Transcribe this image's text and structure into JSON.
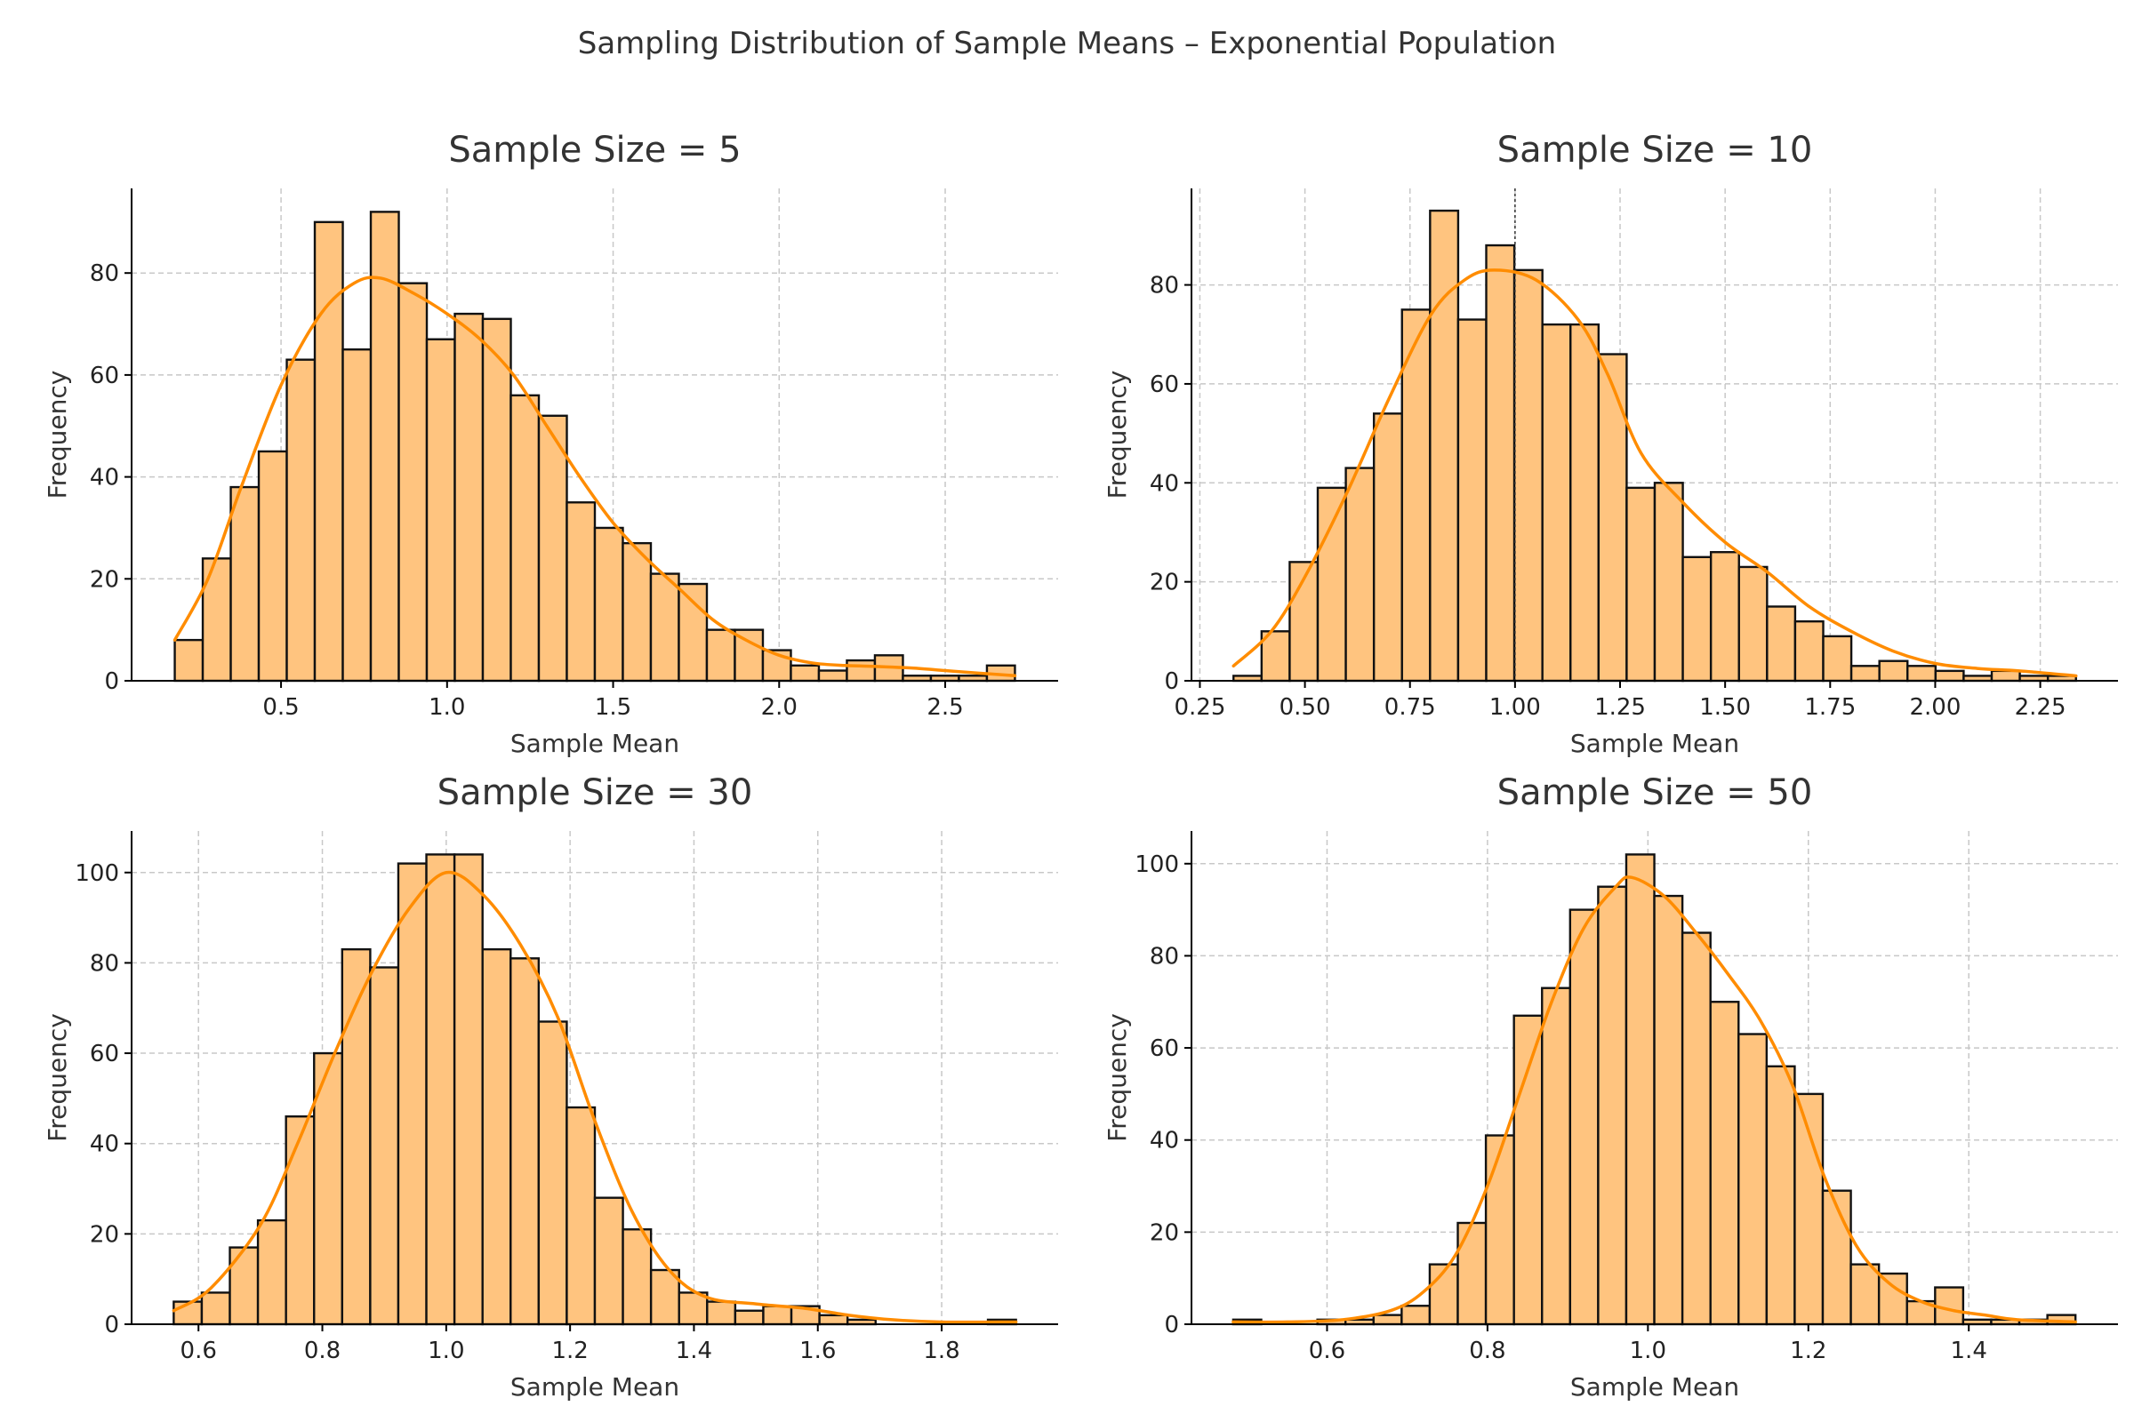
{
  "figure": {
    "suptitle": "Sampling Distribution of Sample Means – Exponential Population",
    "bar_color": "#ffc47f",
    "line_color": "#ff8c00"
  },
  "chart_data": [
    {
      "type": "bar",
      "title": "Sample Size = 5",
      "xlabel": "Sample Mean",
      "ylabel": "Frequency",
      "bin_range": [
        0.18,
        2.71
      ],
      "values": [
        8,
        24,
        38,
        45,
        63,
        90,
        65,
        92,
        78,
        67,
        72,
        71,
        56,
        52,
        35,
        30,
        27,
        21,
        19,
        10,
        10,
        6,
        3,
        2,
        4,
        5,
        1,
        1,
        1,
        3
      ],
      "kde": [
        [
          0.18,
          8
        ],
        [
          0.28,
          20
        ],
        [
          0.38,
          38
        ],
        [
          0.5,
          58
        ],
        [
          0.62,
          72
        ],
        [
          0.72,
          78
        ],
        [
          0.8,
          79
        ],
        [
          0.9,
          76
        ],
        [
          1.0,
          72
        ],
        [
          1.1,
          67
        ],
        [
          1.2,
          60
        ],
        [
          1.3,
          50
        ],
        [
          1.4,
          40
        ],
        [
          1.5,
          31
        ],
        [
          1.6,
          24
        ],
        [
          1.7,
          18
        ],
        [
          1.8,
          12
        ],
        [
          1.9,
          8
        ],
        [
          2.0,
          5
        ],
        [
          2.1,
          3.5
        ],
        [
          2.2,
          3
        ],
        [
          2.3,
          2.8
        ],
        [
          2.4,
          2.5
        ],
        [
          2.5,
          2
        ],
        [
          2.6,
          1.5
        ],
        [
          2.71,
          1
        ]
      ],
      "xticks": [
        0.5,
        1.0,
        1.5,
        2.0,
        2.5
      ],
      "xtick_labels": [
        "0.5",
        "1.0",
        "1.5",
        "2.0",
        "2.5"
      ],
      "yticks": [
        0,
        20,
        40,
        60,
        80
      ],
      "ytick_labels": [
        "0",
        "20",
        "40",
        "60",
        "80"
      ],
      "xlim": [
        0.05,
        2.84
      ],
      "ylim": [
        0,
        96.6
      ],
      "grid": true
    },
    {
      "type": "bar",
      "title": "Sample Size = 10",
      "xlabel": "Sample Mean",
      "ylabel": "Frequency",
      "bin_range": [
        0.33,
        2.335
      ],
      "values": [
        1,
        10,
        24,
        39,
        43,
        54,
        75,
        95,
        73,
        88,
        83,
        72,
        72,
        66,
        39,
        40,
        25,
        26,
        23,
        15,
        12,
        9,
        3,
        4,
        3,
        2,
        1,
        2,
        1,
        1
      ],
      "kde": [
        [
          0.33,
          3
        ],
        [
          0.42,
          10
        ],
        [
          0.5,
          21
        ],
        [
          0.6,
          38
        ],
        [
          0.7,
          57
        ],
        [
          0.8,
          74
        ],
        [
          0.88,
          81
        ],
        [
          0.95,
          83
        ],
        [
          1.05,
          81
        ],
        [
          1.15,
          73
        ],
        [
          1.22,
          62
        ],
        [
          1.3,
          46
        ],
        [
          1.4,
          36
        ],
        [
          1.5,
          28
        ],
        [
          1.6,
          22
        ],
        [
          1.7,
          15
        ],
        [
          1.8,
          10
        ],
        [
          1.9,
          6
        ],
        [
          2.0,
          3.5
        ],
        [
          2.1,
          2.5
        ],
        [
          2.2,
          2
        ],
        [
          2.335,
          1
        ]
      ],
      "xticks": [
        0.25,
        0.5,
        0.75,
        1.0,
        1.25,
        1.5,
        1.75,
        2.0,
        2.25
      ],
      "xtick_labels": [
        "0.25",
        "0.50",
        "0.75",
        "1.00",
        "1.25",
        "1.50",
        "1.75",
        "2.00",
        "2.25"
      ],
      "yticks": [
        0,
        20,
        40,
        60,
        80
      ],
      "ytick_labels": [
        "0",
        "20",
        "40",
        "60",
        "80"
      ],
      "xlim": [
        0.23,
        2.435
      ],
      "ylim": [
        0,
        99.5
      ],
      "grid": true,
      "vline": 1.0
    },
    {
      "type": "bar",
      "title": "Sample Size = 30",
      "xlabel": "Sample Mean",
      "ylabel": "Frequency",
      "bin_range": [
        0.56,
        1.92
      ],
      "values": [
        5,
        7,
        17,
        23,
        46,
        60,
        83,
        79,
        102,
        104,
        104,
        83,
        81,
        67,
        48,
        28,
        21,
        12,
        7,
        5,
        3,
        4,
        4,
        2,
        1,
        0,
        0,
        0,
        0,
        1
      ],
      "kde": [
        [
          0.56,
          3
        ],
        [
          0.62,
          8
        ],
        [
          0.7,
          22
        ],
        [
          0.76,
          40
        ],
        [
          0.82,
          60
        ],
        [
          0.88,
          78
        ],
        [
          0.94,
          92
        ],
        [
          1.0,
          100
        ],
        [
          1.06,
          95
        ],
        [
          1.12,
          84
        ],
        [
          1.18,
          68
        ],
        [
          1.24,
          45
        ],
        [
          1.3,
          25
        ],
        [
          1.36,
          12
        ],
        [
          1.42,
          6
        ],
        [
          1.5,
          4.5
        ],
        [
          1.58,
          3.5
        ],
        [
          1.65,
          2
        ],
        [
          1.72,
          1
        ],
        [
          1.8,
          0.5
        ],
        [
          1.92,
          0.5
        ]
      ],
      "xticks": [
        0.6,
        0.8,
        1.0,
        1.2,
        1.4,
        1.6,
        1.8
      ],
      "xtick_labels": [
        "0.6",
        "0.8",
        "1.0",
        "1.2",
        "1.4",
        "1.6",
        "1.8"
      ],
      "yticks": [
        0,
        20,
        40,
        60,
        80,
        100
      ],
      "ytick_labels": [
        "0",
        "20",
        "40",
        "60",
        "80",
        "100"
      ],
      "xlim": [
        0.492,
        1.988
      ],
      "ylim": [
        0,
        109.2
      ],
      "grid": true
    },
    {
      "type": "bar",
      "title": "Sample Size = 50",
      "xlabel": "Sample Mean",
      "ylabel": "Frequency",
      "bin_range": [
        0.483,
        1.533
      ],
      "values": [
        1,
        0,
        0,
        1,
        1,
        2,
        4,
        13,
        22,
        41,
        67,
        73,
        90,
        95,
        102,
        93,
        85,
        70,
        63,
        56,
        50,
        29,
        13,
        11,
        5,
        8,
        1,
        1,
        1,
        2
      ],
      "kde": [
        [
          0.483,
          0.5
        ],
        [
          0.55,
          0.5
        ],
        [
          0.62,
          1
        ],
        [
          0.68,
          3
        ],
        [
          0.72,
          7
        ],
        [
          0.76,
          15
        ],
        [
          0.8,
          30
        ],
        [
          0.84,
          50
        ],
        [
          0.88,
          70
        ],
        [
          0.92,
          86
        ],
        [
          0.96,
          95
        ],
        [
          0.98,
          97
        ],
        [
          1.02,
          93
        ],
        [
          1.06,
          85
        ],
        [
          1.1,
          76
        ],
        [
          1.14,
          66
        ],
        [
          1.18,
          52
        ],
        [
          1.22,
          32
        ],
        [
          1.26,
          17
        ],
        [
          1.3,
          9
        ],
        [
          1.34,
          5
        ],
        [
          1.38,
          3
        ],
        [
          1.42,
          2
        ],
        [
          1.46,
          1
        ],
        [
          1.533,
          0.5
        ]
      ],
      "xticks": [
        0.6,
        0.8,
        1.0,
        1.2,
        1.4
      ],
      "xtick_labels": [
        "0.6",
        "0.8",
        "1.0",
        "1.2",
        "1.4"
      ],
      "yticks": [
        0,
        20,
        40,
        60,
        80,
        100
      ],
      "ytick_labels": [
        "0",
        "20",
        "40",
        "60",
        "80",
        "100"
      ],
      "xlim": [
        0.431,
        1.586
      ],
      "ylim": [
        0,
        107.1
      ],
      "grid": true
    }
  ]
}
